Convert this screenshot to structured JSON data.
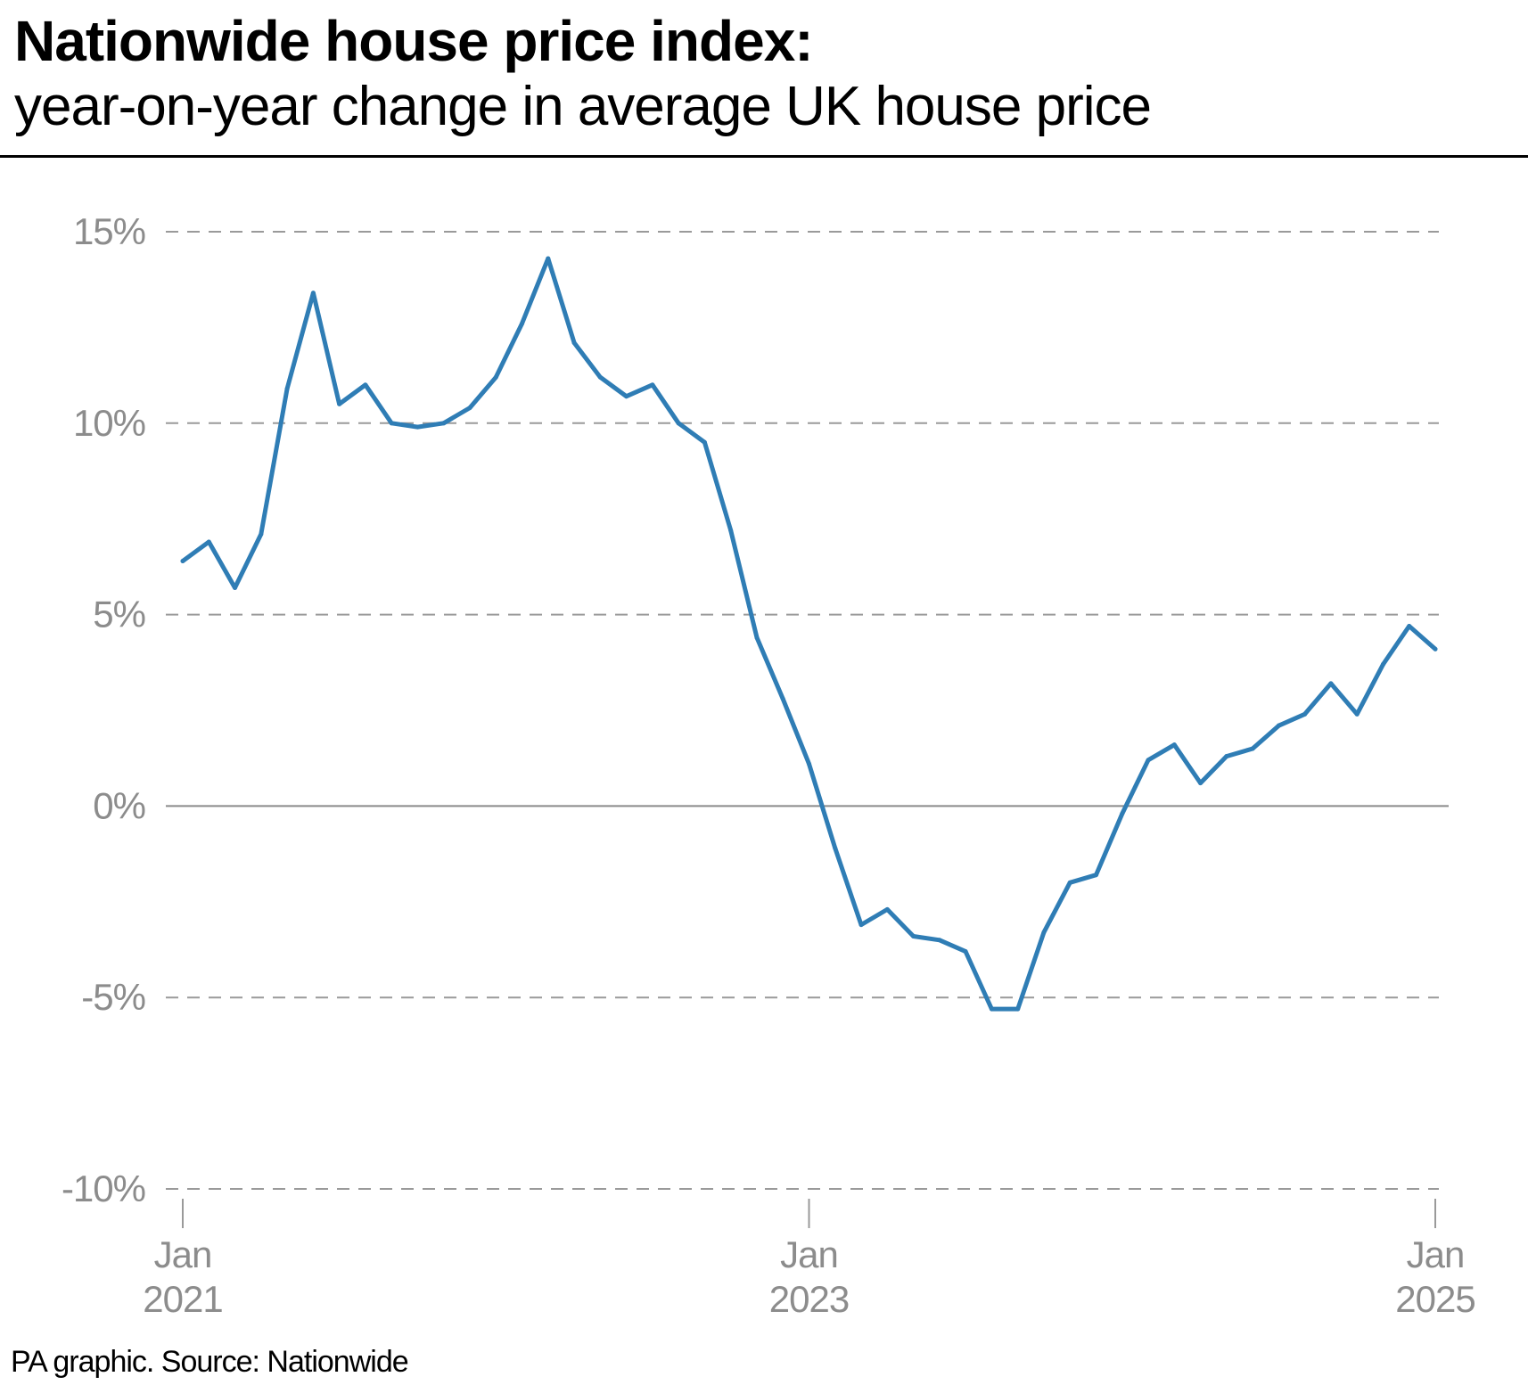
{
  "title": "Nationwide house price index:",
  "subtitle": "year-on-year change in average UK house price",
  "source": "PA graphic. Source: Nationwide",
  "colors": {
    "line": "#2f7db5",
    "grid": "#9a9a9a",
    "zero": "#8a8a8a",
    "tick_text": "#8c8c8c"
  },
  "chart_data": {
    "type": "line",
    "ylim": [
      -10,
      15
    ],
    "yticks": [
      {
        "value": 15,
        "label": "15%"
      },
      {
        "value": 10,
        "label": "10%"
      },
      {
        "value": 5,
        "label": "5%"
      },
      {
        "value": 0,
        "label": "0%"
      },
      {
        "value": -5,
        "label": "-5%"
      },
      {
        "value": -10,
        "label": "-10%"
      }
    ],
    "xlim": [
      "2021-01",
      "2025-01"
    ],
    "xticks": [
      {
        "month": "2021-01",
        "label": [
          "Jan",
          "2021"
        ]
      },
      {
        "month": "2023-01",
        "label": [
          "Jan",
          "2023"
        ]
      },
      {
        "month": "2025-01",
        "label": [
          "Jan",
          "2025"
        ]
      }
    ],
    "grid": "horizontal dashed",
    "series": [
      {
        "x": [
          "2021-01",
          "2021-02",
          "2021-03",
          "2021-04",
          "2021-05",
          "2021-06",
          "2021-07",
          "2021-08",
          "2021-09",
          "2021-10",
          "2021-11",
          "2021-12",
          "2022-01",
          "2022-02",
          "2022-03",
          "2022-04",
          "2022-05",
          "2022-06",
          "2022-07",
          "2022-08",
          "2022-09",
          "2022-10",
          "2022-11",
          "2022-12",
          "2023-01",
          "2023-02",
          "2023-03",
          "2023-04",
          "2023-05",
          "2023-06",
          "2023-07",
          "2023-08",
          "2023-09",
          "2023-10",
          "2023-11",
          "2023-12",
          "2024-01",
          "2024-02",
          "2024-03",
          "2024-04",
          "2024-05",
          "2024-06",
          "2024-07",
          "2024-08",
          "2024-09",
          "2024-10",
          "2024-11",
          "2024-12",
          "2025-01"
        ],
        "values": [
          6.4,
          6.9,
          5.7,
          7.1,
          10.9,
          13.4,
          10.5,
          11.0,
          10.0,
          9.9,
          10.0,
          10.4,
          11.2,
          12.6,
          14.3,
          12.1,
          11.2,
          10.7,
          11.0,
          10.0,
          9.5,
          7.2,
          4.4,
          2.8,
          1.1,
          -1.1,
          -3.1,
          -2.7,
          -3.4,
          -3.5,
          -3.8,
          -5.3,
          -5.3,
          -3.3,
          -2.0,
          -1.8,
          -0.2,
          1.2,
          1.6,
          0.6,
          1.3,
          1.5,
          2.1,
          2.4,
          3.2,
          2.4,
          3.7,
          4.7,
          4.1
        ]
      }
    ]
  }
}
